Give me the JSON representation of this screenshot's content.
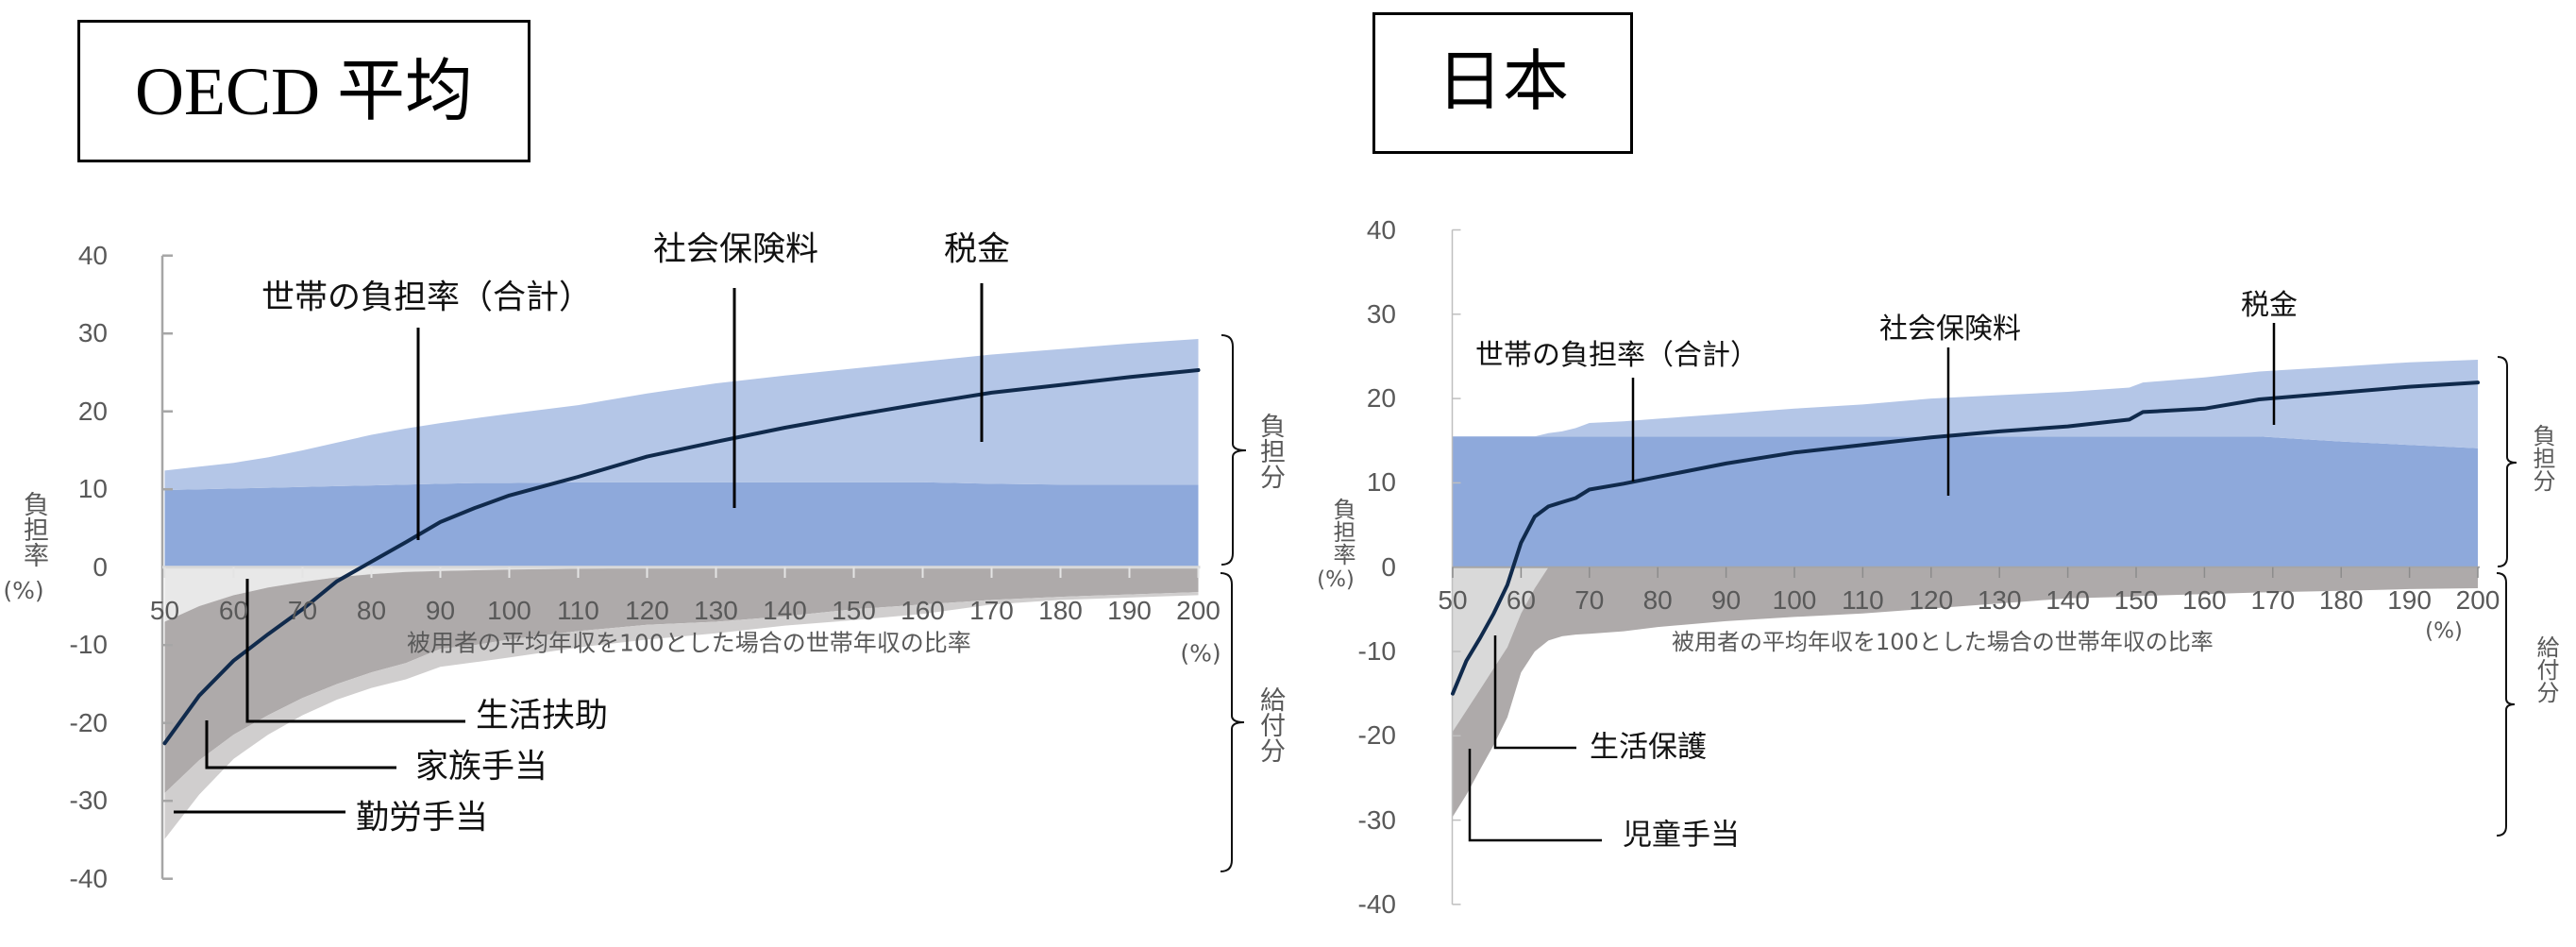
{
  "chart_data": [
    {
      "type": "area",
      "title": "OECD 平均",
      "xlabel": "被用者の平均年収を100とした場合の世帯年収の比率",
      "xunit": "(%)",
      "ylabel": "負担率",
      "yunit": "(%)",
      "xlim": [
        50,
        200
      ],
      "ylim": [
        -40,
        40
      ],
      "grid": false,
      "legend_position": "inline annotations with leader lines",
      "x_ticks": [
        50,
        60,
        70,
        80,
        90,
        100,
        110,
        120,
        130,
        140,
        150,
        160,
        170,
        180,
        190,
        200
      ],
      "y_ticks": [
        40,
        30,
        20,
        10,
        0,
        -10,
        -20,
        -30,
        -40
      ],
      "x": [
        50,
        55,
        60,
        65,
        70,
        75,
        80,
        85,
        90,
        95,
        100,
        110,
        120,
        130,
        140,
        150,
        160,
        170,
        180,
        190,
        200
      ],
      "series": [
        {
          "name": "社会保険料",
          "kind": "area",
          "stack": "burden",
          "color": "#8EA9DB",
          "values": [
            9.9,
            10.0,
            10.1,
            10.2,
            10.3,
            10.4,
            10.5,
            10.6,
            10.7,
            10.8,
            10.8,
            10.9,
            10.9,
            10.9,
            10.9,
            10.9,
            10.9,
            10.7,
            10.6,
            10.6,
            10.6
          ]
        },
        {
          "name": "税金",
          "kind": "area",
          "stack": "burden",
          "color": "#B4C6E7",
          "values": [
            2.5,
            2.9,
            3.3,
            3.9,
            4.7,
            5.6,
            6.5,
            7.2,
            7.8,
            8.3,
            8.9,
            9.9,
            11.4,
            12.7,
            13.7,
            14.6,
            15.5,
            16.6,
            17.4,
            18.1,
            18.7
          ]
        },
        {
          "name": "生活扶助",
          "kind": "area",
          "stack": "benefit",
          "color": "#E8E8E8",
          "values": [
            -7.0,
            -5.0,
            -3.6,
            -2.6,
            -1.9,
            -1.3,
            -0.9,
            -0.6,
            -0.5,
            -0.4,
            -0.3,
            -0.2,
            -0.1,
            -0.1,
            -0.1,
            -0.1,
            -0.1,
            -0.1,
            -0.1,
            -0.1,
            -0.1
          ]
        },
        {
          "name": "家族手当",
          "kind": "area",
          "stack": "benefit",
          "color": "#AEAAAA",
          "values": [
            -22.0,
            -19.8,
            -17.9,
            -16.4,
            -14.9,
            -13.7,
            -12.6,
            -11.7,
            -10.0,
            -9.6,
            -9.0,
            -8.0,
            -7.3,
            -6.9,
            -6.2,
            -5.3,
            -4.7,
            -4.1,
            -3.7,
            -3.4,
            -3.1
          ]
        },
        {
          "name": "勤労手当",
          "kind": "area",
          "stack": "benefit",
          "color": "#D0CECE",
          "values": [
            -5.9,
            -4.4,
            -3.1,
            -2.5,
            -2.2,
            -2.0,
            -2.0,
            -2.1,
            -2.3,
            -2.2,
            -2.3,
            -2.1,
            -1.9,
            -1.5,
            -1.2,
            -1.4,
            -1.2,
            -0.6,
            -0.4,
            -0.4,
            -0.4
          ]
        },
        {
          "name": "世帯の負担率（合計）",
          "kind": "line",
          "color": "#102A4C",
          "values": [
            -22.6,
            -16.5,
            -12.0,
            -8.6,
            -5.4,
            -1.8,
            0.7,
            3.2,
            5.8,
            7.6,
            9.2,
            11.6,
            14.2,
            16.1,
            17.9,
            19.5,
            21.0,
            22.4,
            23.4,
            24.4,
            25.3
          ]
        }
      ],
      "brackets": [
        {
          "label": "負担分"
        },
        {
          "label": "給付分"
        }
      ]
    },
    {
      "type": "area",
      "title": "日本",
      "xlabel": "被用者の平均年収を100とした場合の世帯年収の比率",
      "xunit": "(%)",
      "ylabel": "負担率",
      "yunit": "(%)",
      "xlim": [
        50,
        200
      ],
      "ylim": [
        -40,
        40
      ],
      "grid": false,
      "legend_position": "inline annotations with leader lines",
      "x_ticks": [
        50,
        60,
        70,
        80,
        90,
        100,
        110,
        120,
        130,
        140,
        150,
        160,
        170,
        180,
        190,
        200
      ],
      "y_ticks": [
        40,
        30,
        20,
        10,
        0,
        -10,
        -20,
        -30,
        -40
      ],
      "x": [
        50,
        52,
        54,
        56,
        58,
        60,
        62,
        64,
        66,
        68,
        70,
        75,
        80,
        90,
        100,
        110,
        120,
        130,
        140,
        149,
        151,
        160,
        168,
        180,
        190,
        200
      ],
      "series": [
        {
          "name": "社会保険料",
          "kind": "area",
          "stack": "burden",
          "color": "#8EA9DB",
          "values": [
            15.5,
            15.5,
            15.5,
            15.5,
            15.5,
            15.5,
            15.5,
            15.5,
            15.5,
            15.5,
            15.5,
            15.5,
            15.5,
            15.5,
            15.5,
            15.5,
            15.5,
            15.5,
            15.5,
            15.5,
            15.5,
            15.5,
            15.5,
            14.9,
            14.5,
            14.1
          ]
        },
        {
          "name": "税金",
          "kind": "area",
          "stack": "burden",
          "color": "#B4C6E7",
          "values": [
            0,
            0,
            0,
            0,
            0,
            0,
            0,
            0.4,
            0.6,
            1.0,
            1.6,
            1.8,
            2.1,
            2.7,
            3.3,
            3.8,
            4.5,
            4.9,
            5.3,
            5.8,
            6.4,
            7.0,
            7.7,
            8.9,
            9.8,
            10.5
          ]
        },
        {
          "name": "生活保護",
          "kind": "area",
          "stack": "benefit",
          "color": "#D9D9D9",
          "values": [
            -19.5,
            -17.0,
            -14.5,
            -12.0,
            -9.5,
            -5.5,
            -2.5,
            0,
            0,
            0,
            0,
            0,
            0,
            0,
            0,
            0,
            0,
            0,
            0,
            0,
            0,
            0,
            0,
            0,
            0,
            0
          ]
        },
        {
          "name": "児童手当",
          "kind": "area",
          "stack": "benefit",
          "color": "#AEAAAA",
          "values": [
            -10.1,
            -10.0,
            -9.5,
            -9.1,
            -8.3,
            -7.0,
            -7.5,
            -8.7,
            -8.2,
            -8.0,
            -7.9,
            -7.6,
            -7.1,
            -6.4,
            -5.9,
            -5.5,
            -4.9,
            -4.3,
            -3.7,
            -3.5,
            -3.4,
            -3.2,
            -3.0,
            -2.8,
            -2.6,
            -2.5
          ]
        },
        {
          "name": "世帯の負担率（合計）",
          "kind": "line",
          "color": "#102A4C",
          "values": [
            -15.0,
            -11.1,
            -8.4,
            -5.5,
            -2.1,
            2.9,
            6.0,
            7.2,
            7.7,
            8.2,
            9.2,
            9.9,
            10.7,
            12.3,
            13.6,
            14.5,
            15.4,
            16.1,
            16.7,
            17.5,
            18.4,
            18.8,
            19.9,
            20.7,
            21.4,
            21.9
          ]
        }
      ],
      "brackets": [
        {
          "label": "負担分"
        },
        {
          "label": "給付分"
        }
      ]
    }
  ]
}
